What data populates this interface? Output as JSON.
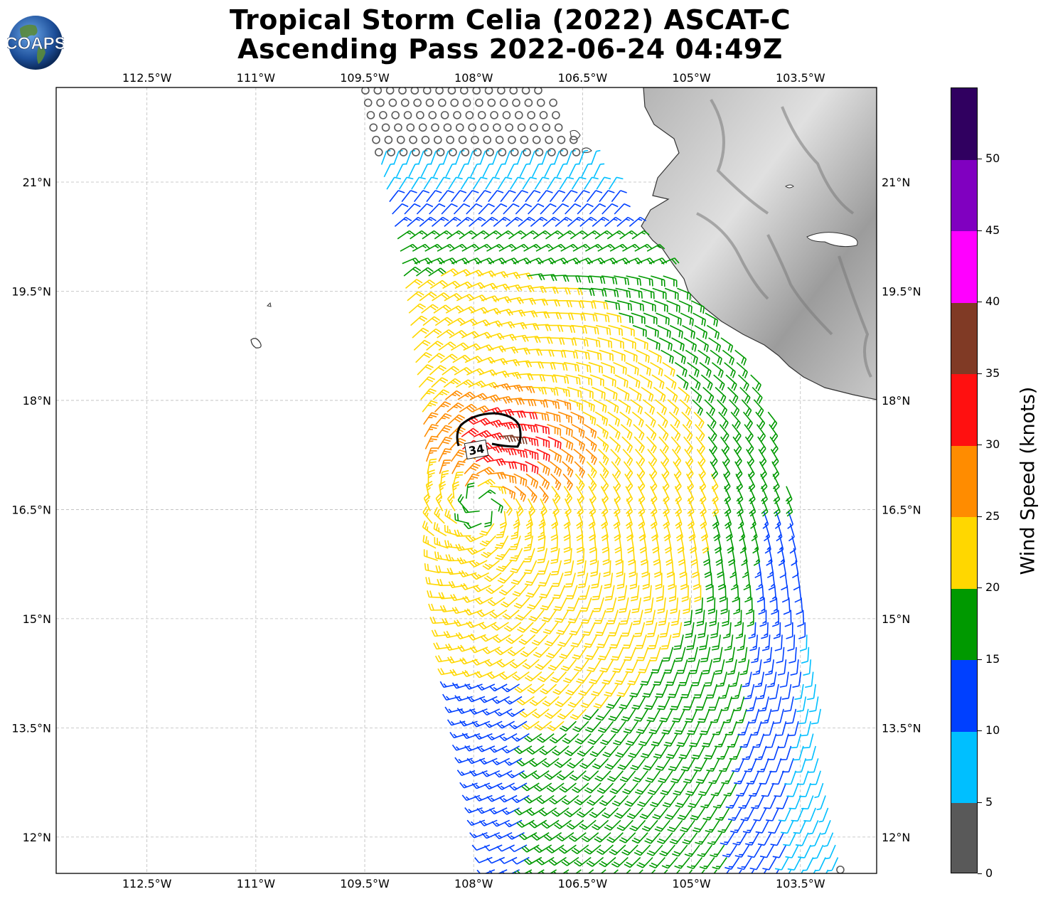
{
  "title": {
    "line1": "Tropical Storm Celia (2022) ASCAT-C",
    "line2": "Ascending Pass 2022-06-24 04:49Z"
  },
  "logo": {
    "text": "COAPS"
  },
  "map": {
    "lon_range": [
      -113.75,
      -102.45
    ],
    "lat_range": [
      11.5,
      22.3
    ],
    "lon_ticks": [
      {
        "value": -112.5,
        "label": "112.5°W"
      },
      {
        "value": -111.0,
        "label": "111°W"
      },
      {
        "value": -109.5,
        "label": "109.5°W"
      },
      {
        "value": -108.0,
        "label": "108°W"
      },
      {
        "value": -106.5,
        "label": "106.5°W"
      },
      {
        "value": -105.0,
        "label": "105°W"
      },
      {
        "value": -103.5,
        "label": "103.5°W"
      }
    ],
    "lat_ticks": [
      {
        "value": 21.0,
        "label": "21°N"
      },
      {
        "value": 19.5,
        "label": "19.5°N"
      },
      {
        "value": 18.0,
        "label": "18°N"
      },
      {
        "value": 16.5,
        "label": "16.5°N"
      },
      {
        "value": 15.0,
        "label": "15°N"
      },
      {
        "value": 13.5,
        "label": "13.5°N"
      },
      {
        "value": 12.0,
        "label": "12°N"
      }
    ],
    "gridlines": true,
    "land": "grayscale terrain, Mexico coast (upper right)",
    "storm_center": {
      "lon": -107.9,
      "lat": 16.55
    },
    "contour": {
      "label": "34",
      "units": "knots",
      "center": {
        "lon": -107.7,
        "lat": 17.55
      }
    },
    "swath_edge_west": [
      [
        -109.5,
        22.3
      ],
      [
        -109.0,
        20.0
      ],
      [
        -108.7,
        17.8
      ],
      [
        -108.6,
        16.5
      ],
      [
        -108.3,
        14.5
      ],
      [
        -108.0,
        13.0
      ],
      [
        -107.7,
        11.5
      ]
    ],
    "swath_edge_east": [
      [
        -107.0,
        22.3
      ],
      [
        -106.2,
        21.0
      ],
      [
        -105.5,
        20.0
      ],
      [
        -104.2,
        18.5
      ],
      [
        -103.8,
        17.5
      ],
      [
        -103.4,
        15.0
      ],
      [
        -103.1,
        13.0
      ],
      [
        -102.8,
        11.5
      ]
    ]
  },
  "colorbar": {
    "label": "Wind Speed (knots)",
    "range": [
      0,
      55
    ],
    "bins": [
      {
        "from": 0,
        "to": 5,
        "color": "#595959"
      },
      {
        "from": 5,
        "to": 10,
        "color": "#00bfff"
      },
      {
        "from": 10,
        "to": 15,
        "color": "#0040ff"
      },
      {
        "from": 15,
        "to": 20,
        "color": "#009900"
      },
      {
        "from": 20,
        "to": 25,
        "color": "#ffd700"
      },
      {
        "from": 25,
        "to": 30,
        "color": "#ff8c00"
      },
      {
        "from": 30,
        "to": 35,
        "color": "#ff1010"
      },
      {
        "from": 35,
        "to": 40,
        "color": "#803a25"
      },
      {
        "from": 40,
        "to": 45,
        "color": "#ff00ff"
      },
      {
        "from": 45,
        "to": 50,
        "color": "#8000c0"
      },
      {
        "from": 50,
        "to": 55,
        "color": "#300060"
      }
    ],
    "ticks": [
      "0",
      "5",
      "10",
      "15",
      "20",
      "25",
      "30",
      "35",
      "40",
      "45",
      "50"
    ]
  }
}
